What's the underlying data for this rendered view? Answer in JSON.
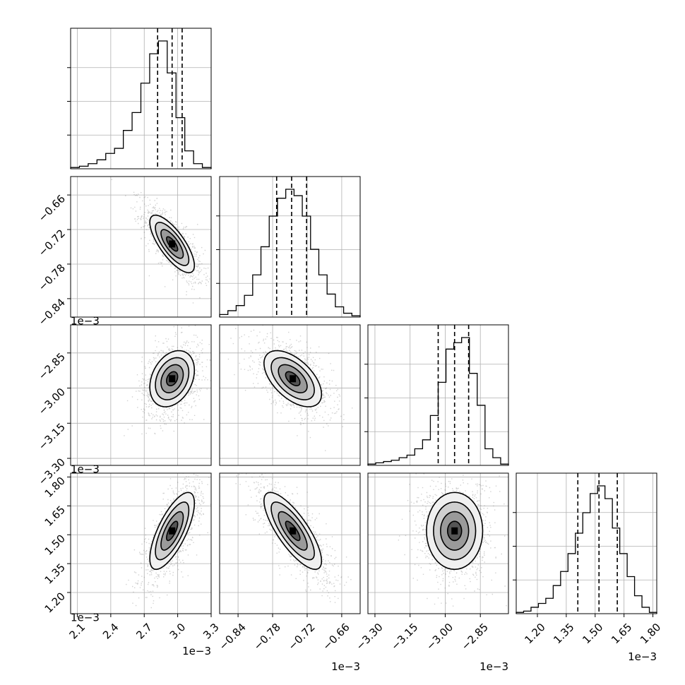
{
  "chart_data": {
    "type": "corner",
    "grid": true,
    "quantile_line_style": "dashed",
    "offset_text": "1e−3",
    "parameters": [
      {
        "range": [
          2.04,
          3.3
        ],
        "ticks": [
          2.1,
          2.4,
          2.7,
          3.0,
          3.3
        ],
        "tick_labels": [
          "2.1",
          "2.4",
          "2.7",
          "3.0",
          "3.3"
        ],
        "quantiles": [
          2.82,
          2.95,
          3.04
        ],
        "center": 2.95,
        "std": 0.1,
        "hist": [
          0.01,
          0.02,
          0.04,
          0.07,
          0.12,
          0.16,
          0.3,
          0.44,
          0.67,
          0.9,
          1.0,
          0.75,
          0.4,
          0.14,
          0.04,
          0.01
        ]
      },
      {
        "range": [
          -0.872,
          -0.628
        ],
        "ticks": [
          -0.84,
          -0.78,
          -0.72,
          -0.66
        ],
        "tick_labels": [
          "−0.84",
          "−0.78",
          "−0.72",
          "−0.66"
        ],
        "quantiles": [
          -0.773,
          -0.747,
          -0.721
        ],
        "center": -0.745,
        "std": 0.025,
        "hist": [
          0.02,
          0.05,
          0.09,
          0.17,
          0.33,
          0.55,
          0.79,
          0.93,
          1.0,
          0.95,
          0.79,
          0.53,
          0.33,
          0.18,
          0.08,
          0.03,
          0.01
        ]
      },
      {
        "range": [
          -3.33,
          -2.73
        ],
        "ticks": [
          -3.3,
          -3.15,
          -3.0,
          -2.85
        ],
        "tick_labels": [
          "−3.30",
          "−3.15",
          "−3.00",
          "−2.85"
        ],
        "quantiles": [
          -3.03,
          -2.96,
          -2.9
        ],
        "center": -2.96,
        "std": 0.06,
        "hist": [
          0.01,
          0.02,
          0.03,
          0.04,
          0.06,
          0.08,
          0.13,
          0.2,
          0.39,
          0.65,
          0.91,
          0.96,
          1.0,
          0.72,
          0.47,
          0.13,
          0.06,
          0.01
        ]
      },
      {
        "range": [
          1.09,
          1.82
        ],
        "ticks": [
          1.2,
          1.35,
          1.5,
          1.65,
          1.8
        ],
        "tick_labels": [
          "1.20",
          "1.35",
          "1.50",
          "1.65",
          "1.80"
        ],
        "quantiles": [
          1.41,
          1.52,
          1.615
        ],
        "center": 1.52,
        "std": 0.1,
        "hist": [
          0.01,
          0.02,
          0.05,
          0.08,
          0.12,
          0.22,
          0.33,
          0.47,
          0.63,
          0.79,
          0.94,
          1.0,
          0.9,
          0.67,
          0.47,
          0.29,
          0.14,
          0.05,
          0.01
        ]
      }
    ],
    "correlations": {
      "1_0": -0.75,
      "2_0": 0.3,
      "2_1": -0.55,
      "3_0": 0.72,
      "3_1": -0.78,
      "3_2": 0.0
    }
  }
}
